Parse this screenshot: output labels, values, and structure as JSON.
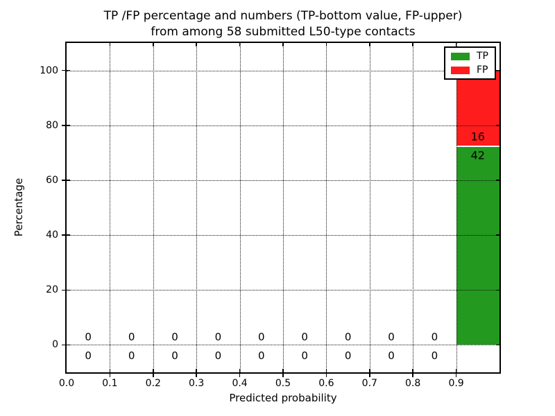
{
  "figure": {
    "title_line1": "TP /FP percentage and numbers (TP-bottom value, FP-upper)",
    "title_line2": "from among 58 submitted L50-type contacts",
    "xlabel": "Predicted probability",
    "ylabel": "Percentage"
  },
  "legend": {
    "items": [
      {
        "label": "TP",
        "color": "#23991f"
      },
      {
        "label": "FP",
        "color": "#ff1c1c"
      }
    ]
  },
  "chart_data": {
    "type": "bar",
    "stacked": true,
    "title": "TP /FP percentage and numbers (TP-bottom value, FP-upper)\nfrom among 58 submitted L50-type contacts",
    "xlabel": "Predicted probability",
    "ylabel": "Percentage",
    "xlim": [
      0.0,
      1.0
    ],
    "ylim": [
      -10,
      110
    ],
    "x_tick_labels": [
      "0.0",
      "0.1",
      "0.2",
      "0.3",
      "0.4",
      "0.5",
      "0.6",
      "0.7",
      "0.8",
      "0.9"
    ],
    "y_tick_values": [
      0,
      20,
      40,
      60,
      80,
      100
    ],
    "grid": true,
    "grid_style": "dotted",
    "legend_position": "upper right",
    "total_submitted": 58,
    "bin_width": 0.1,
    "categories": [
      "0.0-0.1",
      "0.1-0.2",
      "0.2-0.3",
      "0.3-0.4",
      "0.4-0.5",
      "0.5-0.6",
      "0.6-0.7",
      "0.7-0.8",
      "0.8-0.9",
      "0.9-1.0"
    ],
    "series": [
      {
        "name": "TP",
        "color": "#23991f",
        "label_row": "bottom",
        "counts": [
          0,
          0,
          0,
          0,
          0,
          0,
          0,
          0,
          0,
          42
        ],
        "percentages": [
          0,
          0,
          0,
          0,
          0,
          0,
          0,
          0,
          0,
          72.4
        ]
      },
      {
        "name": "FP",
        "color": "#ff1c1c",
        "label_row": "upper",
        "counts": [
          0,
          0,
          0,
          0,
          0,
          0,
          0,
          0,
          0,
          16
        ],
        "percentages": [
          0,
          0,
          0,
          0,
          0,
          0,
          0,
          0,
          0,
          27.6
        ]
      }
    ]
  }
}
